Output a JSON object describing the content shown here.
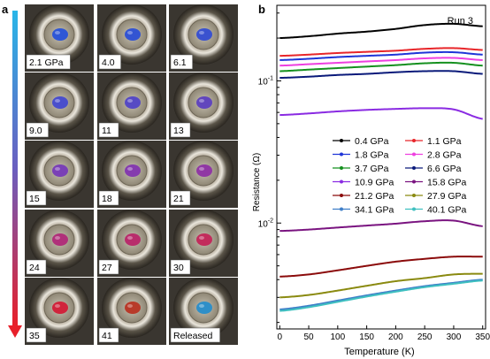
{
  "panel_a": {
    "label": "a",
    "tiles": [
      {
        "label": "2.1 GPa",
        "gem": "#2f57d6"
      },
      {
        "label": "4.0",
        "gem": "#3354d2"
      },
      {
        "label": "6.1",
        "gem": "#3a52cf"
      },
      {
        "label": "9.0",
        "gem": "#4a4fcc"
      },
      {
        "label": "11",
        "gem": "#564ac4"
      },
      {
        "label": "13",
        "gem": "#6146bd"
      },
      {
        "label": "15",
        "gem": "#7a40b6"
      },
      {
        "label": "18",
        "gem": "#853cae"
      },
      {
        "label": "21",
        "gem": "#9038a4"
      },
      {
        "label": "24",
        "gem": "#b0307a"
      },
      {
        "label": "27",
        "gem": "#b82d6c"
      },
      {
        "label": "30",
        "gem": "#c22c5c"
      },
      {
        "label": "35",
        "gem": "#d0243c"
      },
      {
        "label": "41",
        "gem": "#b83a2a"
      },
      {
        "label": "Released",
        "gem": "#2f8fc8"
      }
    ],
    "arrow_colors": {
      "top": "#29b6e8",
      "mid": "#6a5fc0",
      "bottom": "#e8202a"
    }
  },
  "chart_data": {
    "type": "line",
    "panel_label": "b",
    "annotation": "Run 3",
    "xlabel": "Temperature (K)",
    "ylabel": "Resistance (Ω)",
    "xlim": [
      -5,
      355
    ],
    "ylim": [
      0.0018,
      0.34
    ],
    "yscale": "log",
    "xticks": [
      0,
      50,
      100,
      150,
      200,
      250,
      300,
      350
    ],
    "yticks": [
      {
        "value": 0.1,
        "base": "10",
        "exp": "-1"
      },
      {
        "value": 0.01,
        "base": "10",
        "exp": "-2"
      }
    ],
    "legend_position": "center-right",
    "series": [
      {
        "name": "0.4 GPa",
        "color": "#000000",
        "x": [
          0,
          50,
          100,
          150,
          200,
          250,
          300,
          350
        ],
        "y": [
          0.2,
          0.206,
          0.215,
          0.222,
          0.232,
          0.247,
          0.252,
          0.242
        ]
      },
      {
        "name": "1.1 GPa",
        "color": "#e8262a",
        "x": [
          0,
          50,
          100,
          150,
          200,
          250,
          300,
          350
        ],
        "y": [
          0.15,
          0.153,
          0.157,
          0.16,
          0.163,
          0.168,
          0.17,
          0.165
        ]
      },
      {
        "name": "1.8 GPa",
        "color": "#1f35d8",
        "x": [
          0,
          50,
          100,
          150,
          200,
          250,
          300,
          350
        ],
        "y": [
          0.14,
          0.143,
          0.147,
          0.15,
          0.153,
          0.158,
          0.159,
          0.153
        ]
      },
      {
        "name": "2.8 GPa",
        "color": "#ee3fe0",
        "x": [
          0,
          50,
          100,
          150,
          200,
          250,
          300,
          350
        ],
        "y": [
          0.128,
          0.131,
          0.134,
          0.137,
          0.14,
          0.144,
          0.145,
          0.14
        ]
      },
      {
        "name": "3.7 GPa",
        "color": "#15901f",
        "x": [
          0,
          50,
          100,
          150,
          200,
          250,
          300,
          350
        ],
        "y": [
          0.117,
          0.12,
          0.123,
          0.126,
          0.129,
          0.133,
          0.134,
          0.128
        ]
      },
      {
        "name": "6.6 GPa",
        "color": "#0a1a7a",
        "x": [
          0,
          50,
          100,
          150,
          200,
          250,
          300,
          350
        ],
        "y": [
          0.105,
          0.107,
          0.11,
          0.112,
          0.115,
          0.117,
          0.117,
          0.112
        ]
      },
      {
        "name": "10.9 GPa",
        "color": "#8a2be2",
        "x": [
          0,
          50,
          100,
          150,
          200,
          250,
          300,
          350
        ],
        "y": [
          0.0575,
          0.059,
          0.061,
          0.0625,
          0.0635,
          0.0642,
          0.063,
          0.054
        ]
      },
      {
        "name": "15.8 GPa",
        "color": "#7a1480",
        "x": [
          0,
          50,
          100,
          150,
          200,
          250,
          300,
          350
        ],
        "y": [
          0.0088,
          0.009,
          0.0093,
          0.0096,
          0.0099,
          0.0103,
          0.0104,
          0.0095
        ]
      },
      {
        "name": "21.2 GPa",
        "color": "#8b0b0b",
        "x": [
          0,
          50,
          100,
          150,
          200,
          250,
          300,
          350
        ],
        "y": [
          0.0042,
          0.00435,
          0.00465,
          0.005,
          0.00535,
          0.0056,
          0.0058,
          0.0058
        ]
      },
      {
        "name": "27.9 GPa",
        "color": "#8a8a10",
        "x": [
          0,
          50,
          100,
          150,
          200,
          250,
          300,
          350
        ],
        "y": [
          0.003,
          0.00312,
          0.00335,
          0.00362,
          0.0039,
          0.0041,
          0.00435,
          0.0044
        ]
      },
      {
        "name": "34.1 GPa",
        "color": "#3f7fc8",
        "x": [
          0,
          50,
          100,
          150,
          200,
          250,
          300,
          350
        ],
        "y": [
          0.00247,
          0.00262,
          0.00285,
          0.0031,
          0.00335,
          0.0036,
          0.0038,
          0.004
        ]
      },
      {
        "name": "40.1 GPa",
        "color": "#3fc0c0",
        "x": [
          0,
          50,
          100,
          150,
          200,
          250,
          300,
          350
        ],
        "y": [
          0.00241,
          0.00256,
          0.00279,
          0.00304,
          0.00329,
          0.00354,
          0.00374,
          0.00394
        ]
      }
    ]
  }
}
